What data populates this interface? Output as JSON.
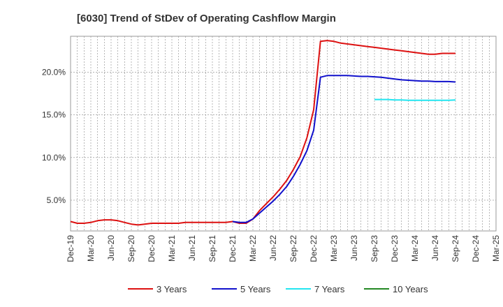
{
  "chart_data": {
    "type": "line",
    "title": "[6030]  Trend of StDev of Operating Cashflow Margin",
    "xlabel": "",
    "ylabel": "",
    "x_ticks": [
      "Dec-19",
      "Mar-20",
      "Jun-20",
      "Sep-20",
      "Dec-20",
      "Mar-21",
      "Jun-21",
      "Sep-21",
      "Dec-21",
      "Mar-22",
      "Jun-22",
      "Sep-22",
      "Dec-22",
      "Mar-23",
      "Jun-23",
      "Sep-23",
      "Dec-23",
      "Mar-24",
      "Jun-24",
      "Sep-24",
      "Dec-24",
      "Mar-25"
    ],
    "y_ticks": [
      "5.0%",
      "10.0%",
      "15.0%",
      "20.0%"
    ],
    "y_tick_values": [
      5,
      10,
      15,
      20
    ],
    "ylim": [
      1.4,
      24.2
    ],
    "grid": true,
    "legend_position": "bottom",
    "series": [
      {
        "name": "3 Years",
        "color": "#dd1111",
        "points": [
          [
            0,
            2.5
          ],
          [
            1,
            2.3
          ],
          [
            2,
            2.3
          ],
          [
            3,
            2.4
          ],
          [
            4,
            2.6
          ],
          [
            5,
            2.7
          ],
          [
            6,
            2.7
          ],
          [
            7,
            2.6
          ],
          [
            8,
            2.4
          ],
          [
            9,
            2.2
          ],
          [
            10,
            2.1
          ],
          [
            11,
            2.2
          ],
          [
            12,
            2.3
          ],
          [
            13,
            2.3
          ],
          [
            14,
            2.3
          ],
          [
            15,
            2.3
          ],
          [
            16,
            2.3
          ],
          [
            17,
            2.4
          ],
          [
            18,
            2.4
          ],
          [
            19,
            2.4
          ],
          [
            20,
            2.4
          ],
          [
            21,
            2.4
          ],
          [
            22,
            2.4
          ],
          [
            23,
            2.4
          ],
          [
            24,
            2.5
          ],
          [
            25,
            2.3
          ],
          [
            26,
            2.3
          ],
          [
            27,
            2.8
          ],
          [
            28,
            3.8
          ],
          [
            29,
            4.6
          ],
          [
            30,
            5.4
          ],
          [
            31,
            6.3
          ],
          [
            32,
            7.3
          ],
          [
            33,
            8.6
          ],
          [
            34,
            10.1
          ],
          [
            35,
            12.3
          ],
          [
            36,
            15.6
          ],
          [
            37,
            23.6
          ],
          [
            38,
            23.7
          ],
          [
            39,
            23.6
          ],
          [
            40,
            23.4
          ],
          [
            41,
            23.3
          ],
          [
            42,
            23.2
          ],
          [
            43,
            23.1
          ],
          [
            44,
            23.0
          ],
          [
            45,
            22.9
          ],
          [
            46,
            22.8
          ],
          [
            47,
            22.7
          ],
          [
            48,
            22.6
          ],
          [
            49,
            22.5
          ],
          [
            50,
            22.4
          ],
          [
            51,
            22.3
          ],
          [
            52,
            22.2
          ],
          [
            53,
            22.1
          ],
          [
            54,
            22.1
          ],
          [
            55,
            22.2
          ],
          [
            56,
            22.2
          ],
          [
            57,
            22.2
          ]
        ]
      },
      {
        "name": "5 Years",
        "color": "#1111cc",
        "points": [
          [
            24,
            2.5
          ],
          [
            25,
            2.4
          ],
          [
            26,
            2.4
          ],
          [
            27,
            2.8
          ],
          [
            28,
            3.5
          ],
          [
            29,
            4.2
          ],
          [
            30,
            4.9
          ],
          [
            31,
            5.7
          ],
          [
            32,
            6.6
          ],
          [
            33,
            7.8
          ],
          [
            34,
            9.2
          ],
          [
            35,
            10.8
          ],
          [
            36,
            13.2
          ],
          [
            37,
            19.4
          ],
          [
            38,
            19.6
          ],
          [
            39,
            19.6
          ],
          [
            40,
            19.6
          ],
          [
            41,
            19.6
          ],
          [
            42,
            19.55
          ],
          [
            43,
            19.5
          ],
          [
            44,
            19.5
          ],
          [
            45,
            19.45
          ],
          [
            46,
            19.4
          ],
          [
            47,
            19.3
          ],
          [
            48,
            19.2
          ],
          [
            49,
            19.1
          ],
          [
            50,
            19.05
          ],
          [
            51,
            19.0
          ],
          [
            52,
            18.95
          ],
          [
            53,
            18.95
          ],
          [
            54,
            18.9
          ],
          [
            55,
            18.9
          ],
          [
            56,
            18.9
          ],
          [
            57,
            18.85
          ]
        ]
      },
      {
        "name": "7 Years",
        "color": "#22e5f0",
        "points": [
          [
            45,
            16.8
          ],
          [
            46,
            16.8
          ],
          [
            47,
            16.8
          ],
          [
            48,
            16.75
          ],
          [
            49,
            16.75
          ],
          [
            50,
            16.7
          ],
          [
            51,
            16.7
          ],
          [
            52,
            16.7
          ],
          [
            53,
            16.7
          ],
          [
            54,
            16.7
          ],
          [
            55,
            16.7
          ],
          [
            56,
            16.7
          ],
          [
            57,
            16.75
          ]
        ]
      },
      {
        "name": "10 Years",
        "color": "#228822",
        "points": []
      }
    ]
  }
}
